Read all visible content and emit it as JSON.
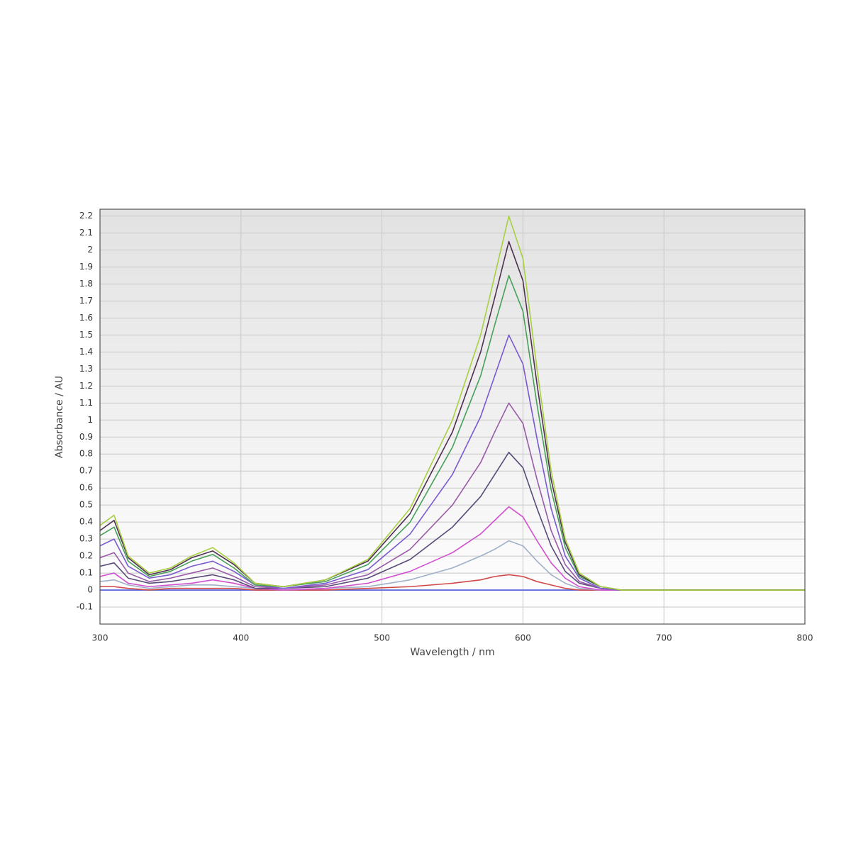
{
  "chart_data": {
    "type": "line",
    "x_label": "Wavelength / nm",
    "y_label": "Absorbance / AU",
    "x": [
      300,
      310,
      320,
      335,
      350,
      365,
      380,
      395,
      410,
      430,
      460,
      490,
      520,
      550,
      570,
      580,
      590,
      600,
      610,
      620,
      630,
      640,
      655,
      670,
      700,
      800
    ],
    "series": [
      {
        "color": "#4a5ad8",
        "values": [
          0,
          0,
          0,
          0,
          0,
          0,
          0,
          0,
          0,
          0,
          0,
          0,
          0,
          0,
          0,
          0,
          0,
          0,
          0,
          0,
          0,
          0,
          0,
          0,
          0,
          0
        ]
      },
      {
        "color": "#d04848",
        "values": [
          0.02,
          0.02,
          0.01,
          0,
          0.01,
          0.01,
          0.01,
          0.01,
          0,
          0,
          0,
          0.01,
          0.02,
          0.04,
          0.06,
          0.08,
          0.09,
          0.08,
          0.05,
          0.03,
          0.01,
          0,
          0,
          0,
          0,
          0
        ]
      },
      {
        "color": "#a0b0c8",
        "values": [
          0.05,
          0.06,
          0.03,
          0.01,
          0.02,
          0.03,
          0.03,
          0.02,
          0.01,
          0,
          0.01,
          0.02,
          0.06,
          0.13,
          0.2,
          0.24,
          0.29,
          0.26,
          0.17,
          0.09,
          0.04,
          0.01,
          0,
          0,
          0,
          0
        ]
      },
      {
        "color": "#d050d0",
        "values": [
          0.08,
          0.1,
          0.04,
          0.02,
          0.03,
          0.04,
          0.06,
          0.04,
          0.01,
          0,
          0.01,
          0.04,
          0.11,
          0.22,
          0.33,
          0.41,
          0.49,
          0.43,
          0.29,
          0.16,
          0.07,
          0.02,
          0,
          0,
          0,
          0
        ]
      },
      {
        "color": "#5a4a78",
        "values": [
          0.14,
          0.16,
          0.07,
          0.04,
          0.05,
          0.07,
          0.09,
          0.06,
          0.01,
          0.01,
          0.02,
          0.07,
          0.18,
          0.37,
          0.55,
          0.68,
          0.81,
          0.72,
          0.48,
          0.26,
          0.11,
          0.04,
          0.01,
          0,
          0,
          0
        ]
      },
      {
        "color": "#9a5aa8",
        "values": [
          0.19,
          0.22,
          0.1,
          0.05,
          0.07,
          0.1,
          0.13,
          0.08,
          0.02,
          0.01,
          0.03,
          0.09,
          0.24,
          0.5,
          0.75,
          0.93,
          1.1,
          0.98,
          0.65,
          0.35,
          0.15,
          0.05,
          0.01,
          0,
          0,
          0
        ]
      },
      {
        "color": "#7a5ad0",
        "values": [
          0.26,
          0.3,
          0.14,
          0.07,
          0.09,
          0.14,
          0.17,
          0.11,
          0.03,
          0.01,
          0.04,
          0.12,
          0.33,
          0.68,
          1.02,
          1.26,
          1.5,
          1.33,
          0.89,
          0.48,
          0.2,
          0.07,
          0.01,
          0,
          0,
          0
        ]
      },
      {
        "color": "#48a058",
        "values": [
          0.32,
          0.37,
          0.17,
          0.08,
          0.11,
          0.17,
          0.21,
          0.13,
          0.03,
          0.02,
          0.05,
          0.15,
          0.4,
          0.84,
          1.26,
          1.56,
          1.85,
          1.64,
          1.09,
          0.59,
          0.25,
          0.08,
          0.02,
          0,
          0,
          0
        ]
      },
      {
        "color": "#503050",
        "values": [
          0.35,
          0.41,
          0.19,
          0.09,
          0.12,
          0.19,
          0.23,
          0.15,
          0.04,
          0.02,
          0.06,
          0.17,
          0.45,
          0.93,
          1.4,
          1.72,
          2.05,
          1.82,
          1.21,
          0.65,
          0.28,
          0.09,
          0.02,
          0,
          0,
          0
        ]
      },
      {
        "color": "#a8d040",
        "values": [
          0.38,
          0.44,
          0.2,
          0.1,
          0.13,
          0.2,
          0.25,
          0.16,
          0.04,
          0.02,
          0.06,
          0.18,
          0.48,
          1.0,
          1.5,
          1.85,
          2.2,
          1.95,
          1.3,
          0.7,
          0.3,
          0.1,
          0.02,
          0,
          0,
          0
        ]
      }
    ],
    "xlim": [
      300,
      800
    ],
    "xticks": [
      300,
      400,
      500,
      600,
      700,
      800
    ],
    "ylim": [
      -0.2,
      2.24
    ],
    "yticks": [
      -0.1,
      0,
      0.1,
      0.2,
      0.3,
      0.4,
      0.5,
      0.6,
      0.7,
      0.8,
      0.9,
      1,
      1.1,
      1.2,
      1.3,
      1.4,
      1.5,
      1.6,
      1.7,
      1.8,
      1.9,
      2,
      2.1,
      2.2
    ],
    "grid": true
  }
}
